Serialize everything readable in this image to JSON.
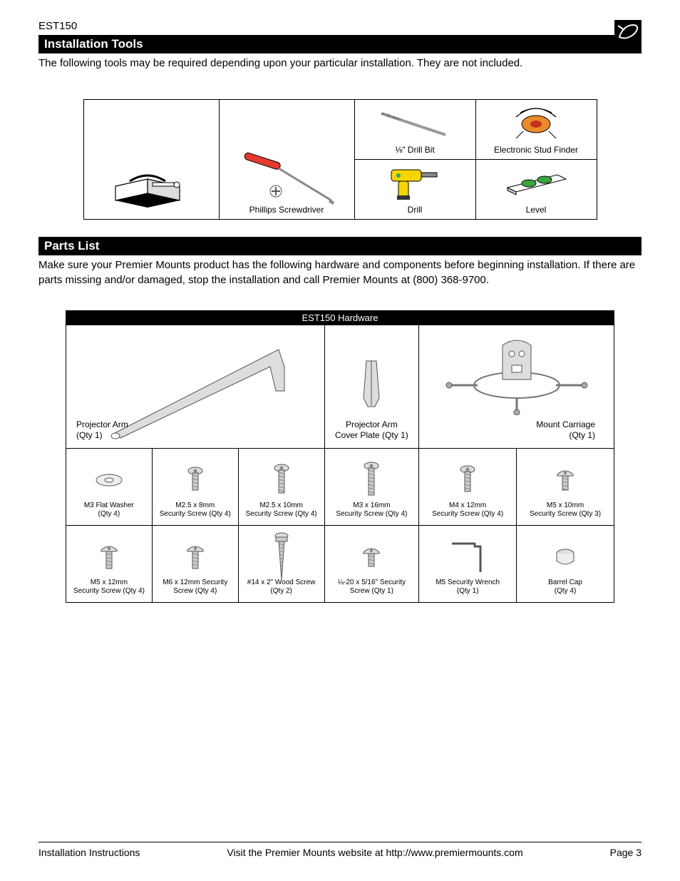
{
  "model": "EST150",
  "sections": {
    "tools": {
      "title": "Installation Tools",
      "intro": "The following tools may be required depending upon your particular installation. They are not included.",
      "items": {
        "screwdriver": "Phillips Screwdriver",
        "drillbit": "⅛\" Drill Bit",
        "studfinder": "Electronic Stud Finder",
        "drill": "Drill",
        "level": "Level"
      }
    },
    "parts": {
      "title": "Parts List",
      "intro": "Make sure your Premier Mounts product has the following hardware and components before beginning installation. If there are parts missing and/or damaged, stop the installation and call Premier Mounts at (800) 368-9700.",
      "table_header": "EST150 Hardware",
      "major": {
        "arm": {
          "name": "Projector Arm",
          "qty": "(Qty 1)"
        },
        "cover": {
          "name": "Projector Arm",
          "qty": "Cover Plate (Qty 1)"
        },
        "carriage": {
          "name": "Mount Carriage",
          "qty": "(Qty 1)"
        }
      },
      "hw_row1": [
        {
          "name": "M3 Flat Washer",
          "qty": "(Qty 4)"
        },
        {
          "name": "M2.5 x 8mm",
          "qty": "Security Screw  (Qty 4)"
        },
        {
          "name": "M2.5 x 10mm",
          "qty": "Security Screw (Qty 4)"
        },
        {
          "name": "M3 x 16mm",
          "qty": "Security Screw (Qty 4)"
        },
        {
          "name": "M4 x 12mm",
          "qty": "Security Screw (Qty 4)"
        },
        {
          "name": "M5 x 10mm",
          "qty": "Security Screw (Qty 3)"
        }
      ],
      "hw_row2": [
        {
          "name": "M5 x 12mm",
          "qty": "Security Screw (Qty 4)"
        },
        {
          "name": "M6 x 12mm Security",
          "qty": "Screw (Qty 4)"
        },
        {
          "name": "#14 x 2\" Wood Screw",
          "qty": "(Qty 2)"
        },
        {
          "name": "¼-20 x 5/16\" Security",
          "qty": "Screw (Qty 1)"
        },
        {
          "name": "M5 Security Wrench",
          "qty": "(Qty 1)"
        },
        {
          "name": "Barrel Cap",
          "qty": "(Qty 4)"
        }
      ]
    }
  },
  "footer": {
    "left": "Installation Instructions",
    "mid": "Visit the Premier Mounts website at http://www.premiermounts.com",
    "right": "Page 3"
  },
  "colors": {
    "bar_bg": "#000000",
    "bar_fg": "#ffffff",
    "border": "#000000",
    "screwdriver_handle": "#e43b2e",
    "drill_body": "#f5d400",
    "level_body": "#3aa640",
    "studfinder_body": "#e98a2a"
  }
}
